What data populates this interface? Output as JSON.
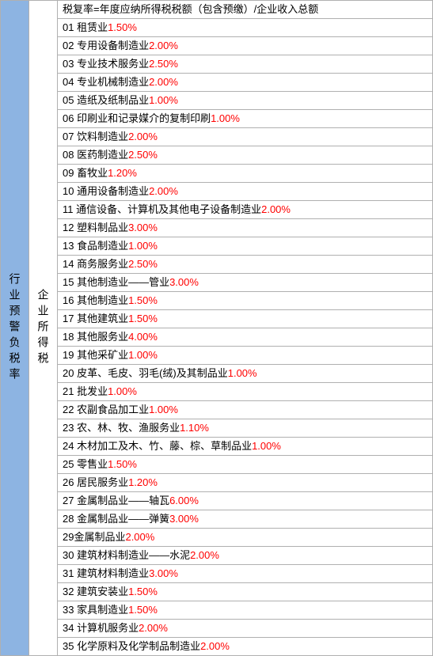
{
  "left_header": "行业预警负税率",
  "mid_header": "企业所得税",
  "formula": "税复率=年度应纳所得税税额（包含预缴）/企业收入总额",
  "rows": [
    {
      "num": "01",
      "label": "租赁业",
      "rate": "1.50%",
      "space": true
    },
    {
      "num": "02",
      "label": "专用设备制造业",
      "rate": "2.00%",
      "space": true
    },
    {
      "num": "03",
      "label": "专业技术服务业",
      "rate": "2.50%",
      "space": true
    },
    {
      "num": "04",
      "label": "专业机械制造业",
      "rate": "2.00%",
      "space": true
    },
    {
      "num": "05",
      "label": "造纸及纸制品业",
      "rate": "1.00%",
      "space": true
    },
    {
      "num": "06",
      "label": "印刷业和记录媒介的复制印刷",
      "rate": "1.00%",
      "space": true
    },
    {
      "num": "07",
      "label": "饮料制造业",
      "rate": "2.00%",
      "space": true
    },
    {
      "num": "08",
      "label": "医药制造业",
      "rate": "2.50%",
      "space": true
    },
    {
      "num": "09",
      "label": "畜牧业",
      "rate": "1.20%",
      "space": true
    },
    {
      "num": "10",
      "label": "通用设备制造业",
      "rate": "2.00%",
      "space": true
    },
    {
      "num": "11",
      "label": "通信设备、计算机及其他电子设备制造业",
      "rate": "2.00%",
      "space": false
    },
    {
      "num": "12",
      "label": "塑料制品业",
      "rate": "3.00%",
      "space": true
    },
    {
      "num": "13",
      "label": "食品制造业",
      "rate": "1.00%",
      "space": true
    },
    {
      "num": "14",
      "label": "商务服务业",
      "rate": "2.50%",
      "space": true
    },
    {
      "num": "15",
      "label": "其他制造业——管业",
      "rate": "3.00%",
      "space": true
    },
    {
      "num": "16",
      "label": "其他制造业",
      "rate": "1.50%",
      "space": true
    },
    {
      "num": "17",
      "label": "其他建筑业",
      "rate": "1.50%",
      "space": true
    },
    {
      "num": "18",
      "label": "其他服务业",
      "rate": "4.00%",
      "space": true
    },
    {
      "num": "19",
      "label": "其他采矿业",
      "rate": "1.00%",
      "space": true
    },
    {
      "num": "20",
      "label": "皮革、毛皮、羽毛(绒)及其制品业",
      "rate": "1.00%",
      "space": false
    },
    {
      "num": "21",
      "label": "批发业",
      "rate": "1.00%",
      "space": true
    },
    {
      "num": "22",
      "label": "农副食品加工业",
      "rate": "1.00%",
      "space": true
    },
    {
      "num": "23",
      "label": "农、林、牧、渔服务业",
      "rate": "1.10%",
      "space": true
    },
    {
      "num": "24",
      "label": "木材加工及木、竹、藤、棕、草制品业",
      "rate": "1.00%",
      "space": true
    },
    {
      "num": "25",
      "label": "零售业",
      "rate": "1.50%",
      "space": true
    },
    {
      "num": "26",
      "label": "居民服务业",
      "rate": "1.20%",
      "space": true
    },
    {
      "num": "27",
      "label": "金属制品业——轴瓦",
      "rate": "6.00%",
      "space": true
    },
    {
      "num": "28",
      "label": "金属制品业——弹簧",
      "rate": "3.00%",
      "space": true
    },
    {
      "num": "29",
      "label": "金属制品业",
      "rate": "2.00%",
      "space": false,
      "nospace_after_num": true
    },
    {
      "num": "30",
      "label": "建筑材料制造业——水泥",
      "rate": "2.00%",
      "space": true
    },
    {
      "num": "31",
      "label": "建筑材料制造业",
      "rate": "3.00%",
      "space": true
    },
    {
      "num": "32",
      "label": "建筑安装业",
      "rate": "1.50%",
      "space": true
    },
    {
      "num": "33",
      "label": "家具制造业",
      "rate": "1.50%",
      "space": true
    },
    {
      "num": "34",
      "label": "计算机服务业",
      "rate": "2.00%",
      "space": true
    },
    {
      "num": "35",
      "label": "化学原料及化学制品制造业",
      "rate": "2.00%",
      "space": true
    }
  ],
  "colors": {
    "left_bg": "#8db4e2",
    "rate_color": "#ff0000",
    "text_color": "#000000",
    "border_color": "#b0b0b0",
    "bg": "#ffffff"
  },
  "font_size": 13
}
